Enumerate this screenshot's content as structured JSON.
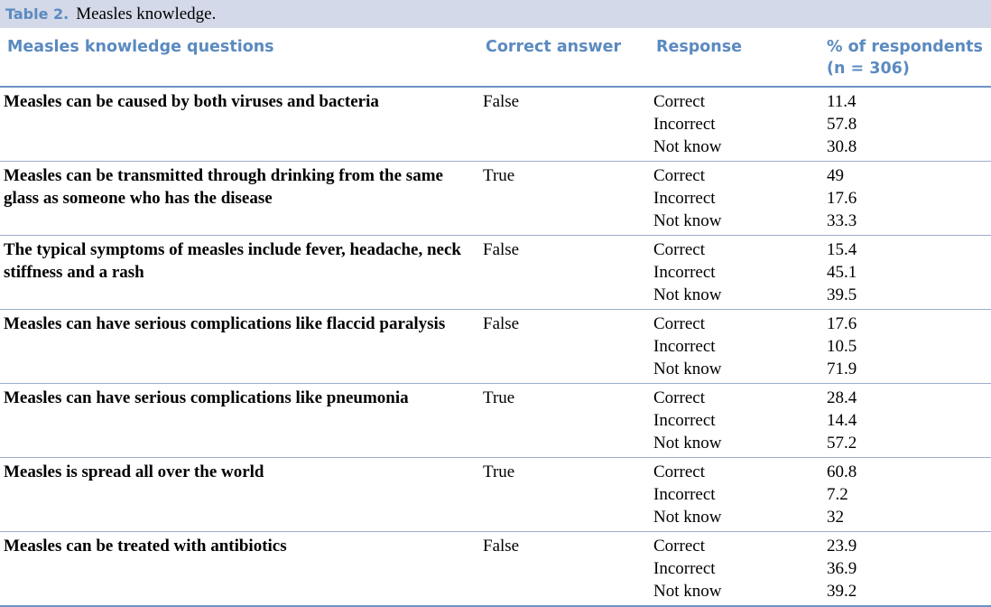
{
  "caption": {
    "label": "Table 2.",
    "title": "Measles knowledge."
  },
  "headers": [
    "Measles knowledge questions",
    "Correct answer",
    "Response",
    "% of respondents (n = 306)"
  ],
  "rows": [
    {
      "q": "Measles can be caused by both viruses and bacteria",
      "a": "False",
      "r": [
        "Correct",
        "Incorrect",
        "Not know"
      ],
      "p": [
        "11.4",
        "57.8",
        "30.8"
      ]
    },
    {
      "q": "Measles can be transmitted through drinking from the same glass as someone who has the disease",
      "a": "True",
      "r": [
        "Correct",
        "Incorrect",
        "Not know"
      ],
      "p": [
        "49",
        "17.6",
        "33.3"
      ]
    },
    {
      "q": "The typical symptoms of measles include fever, headache, neck stiffness and a rash",
      "a": "False",
      "r": [
        "Correct",
        "Incorrect",
        "Not know"
      ],
      "p": [
        "15.4",
        "45.1",
        "39.5"
      ]
    },
    {
      "q": "Measles can have serious complications like flaccid paralysis",
      "a": "False",
      "r": [
        "Correct",
        "Incorrect",
        "Not know"
      ],
      "p": [
        "17.6",
        "10.5",
        "71.9"
      ]
    },
    {
      "q": "Measles can have serious complications like pneumonia",
      "a": "True",
      "r": [
        "Correct",
        "Incorrect",
        "Not know"
      ],
      "p": [
        "28.4",
        "14.4",
        "57.2"
      ]
    },
    {
      "q": "Measles is spread all over the world",
      "a": "True",
      "r": [
        "Correct",
        "Incorrect",
        "Not know"
      ],
      "p": [
        "60.8",
        "7.2",
        "32"
      ]
    },
    {
      "q": "Measles can be treated with antibiotics",
      "a": "False",
      "r": [
        "Correct",
        "Incorrect",
        "Not know"
      ],
      "p": [
        "23.9",
        "36.9",
        "39.2"
      ]
    }
  ]
}
